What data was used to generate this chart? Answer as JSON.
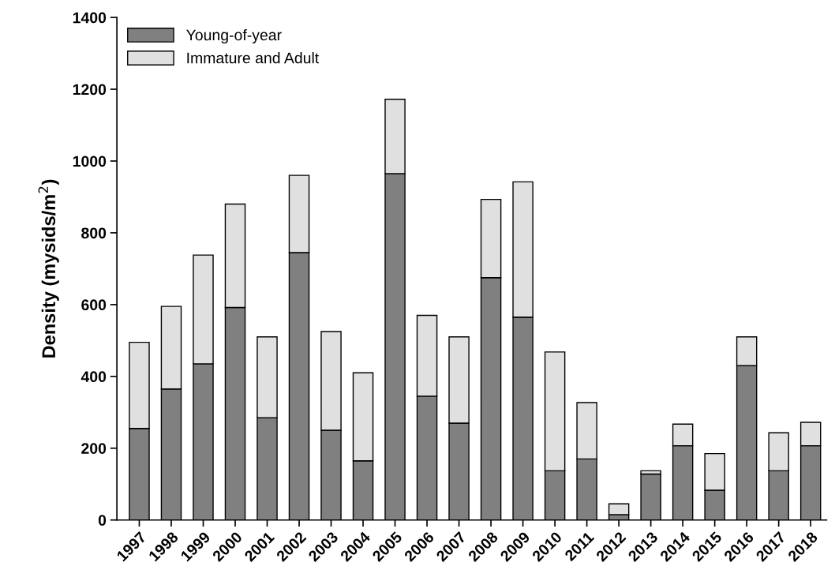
{
  "chart_data": {
    "type": "bar",
    "stacked": true,
    "ylabel": "Density (mysids/m$^{2}$)",
    "categories": [
      "1997",
      "1998",
      "1999",
      "2000",
      "2001",
      "2002",
      "2003",
      "2004",
      "2005",
      "2006",
      "2007",
      "2008",
      "2009",
      "2010",
      "2011",
      "2012",
      "2013",
      "2014",
      "2015",
      "2016",
      "2017",
      "2018"
    ],
    "series": [
      {
        "name": "Young-of-year",
        "color": "#808080",
        "values": [
          255,
          365,
          435,
          592,
          285,
          745,
          250,
          165,
          965,
          345,
          270,
          675,
          565,
          137,
          170,
          15,
          128,
          207,
          83,
          430,
          137,
          207
        ]
      },
      {
        "name": "Immature and Adult",
        "color": "#e0e0e0",
        "values": [
          240,
          230,
          303,
          288,
          225,
          215,
          275,
          245,
          207,
          225,
          240,
          218,
          377,
          331,
          157,
          30,
          9,
          60,
          102,
          80,
          106,
          65
        ]
      }
    ],
    "ylim": [
      0,
      1400
    ],
    "yticks": [
      0,
      200,
      400,
      600,
      800,
      1000,
      1200,
      1400
    ],
    "grid": false,
    "legend": "top left"
  }
}
